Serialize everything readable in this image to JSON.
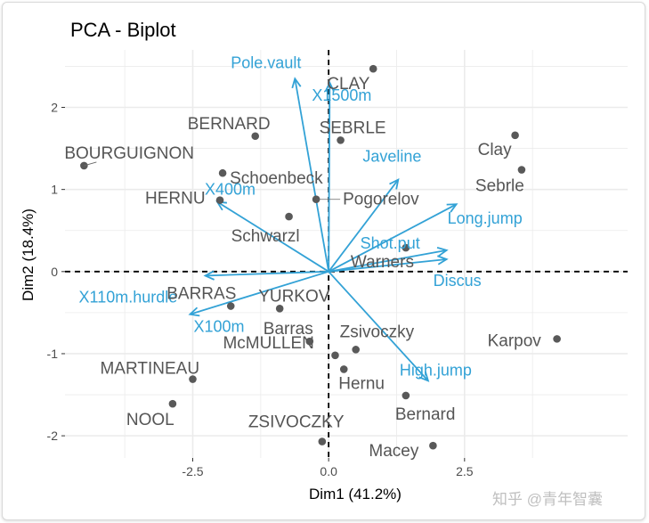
{
  "chart_data": {
    "type": "scatter",
    "title": "PCA - Biplot",
    "xlabel": "Dim1 (41.2%)",
    "ylabel": "Dim2 (18.4%)",
    "xlim": [
      -4.85,
      5.5
    ],
    "ylim": [
      -2.27,
      2.7
    ],
    "xticks": [
      -2.5,
      0,
      2.5
    ],
    "xtick_labels": [
      "-2.5",
      "0.0",
      "2.5"
    ],
    "yticks": [
      -2,
      -1,
      0,
      1,
      2
    ],
    "ytick_labels": [
      "-2",
      "-1",
      "0",
      "1",
      "2"
    ],
    "grid": true,
    "individuals": [
      {
        "name": "BOURGUIGNON",
        "x": -4.5,
        "y": 1.29
      },
      {
        "name": "BERNARD",
        "x": -1.35,
        "y": 1.65
      },
      {
        "name": "Schoenbeck",
        "x": -1.95,
        "y": 1.2
      },
      {
        "name": "HERNU",
        "x": -2.0,
        "y": 0.87
      },
      {
        "name": "CLAY",
        "x": 0.82,
        "y": 2.47
      },
      {
        "name": "SEBRLE",
        "x": 0.22,
        "y": 1.6
      },
      {
        "name": "Pogorelov",
        "x": -0.23,
        "y": 0.88
      },
      {
        "name": "Schwarzl",
        "x": -0.73,
        "y": 0.67
      },
      {
        "name": "Clay",
        "x": 3.43,
        "y": 1.66
      },
      {
        "name": "Sebrle",
        "x": 3.55,
        "y": 1.24
      },
      {
        "name": "Warners",
        "x": 1.42,
        "y": 0.29
      },
      {
        "name": "BARRAS",
        "x": -1.8,
        "y": -0.42
      },
      {
        "name": "YURKOV",
        "x": -0.9,
        "y": -0.45
      },
      {
        "name": "Barras",
        "x": -0.35,
        "y": -0.85
      },
      {
        "name": "Zsivoczky",
        "x": 0.5,
        "y": -0.95
      },
      {
        "name": "McMULLEN",
        "x": 0.12,
        "y": -1.02
      },
      {
        "name": "Hernu",
        "x": 0.28,
        "y": -1.19
      },
      {
        "name": "Karpov",
        "x": 4.2,
        "y": -0.82
      },
      {
        "name": "Bernard",
        "x": 1.42,
        "y": -1.51
      },
      {
        "name": "MARTINEAU",
        "x": -2.5,
        "y": -1.31
      },
      {
        "name": "NOOL",
        "x": -2.87,
        "y": -1.61
      },
      {
        "name": "ZSIVOCZKY",
        "x": -0.12,
        "y": -2.07
      },
      {
        "name": "Macey",
        "x": 1.92,
        "y": -2.12
      }
    ],
    "variables": [
      {
        "name": "Pole.vault",
        "x": -0.62,
        "y": 2.35
      },
      {
        "name": "X1500m",
        "x": 0.02,
        "y": 2.3
      },
      {
        "name": "X400m",
        "x": -2.05,
        "y": 0.85
      },
      {
        "name": "Javeline",
        "x": 1.28,
        "y": 1.12
      },
      {
        "name": "Long.jump",
        "x": 2.35,
        "y": 0.82
      },
      {
        "name": "Shot.put",
        "x": 2.17,
        "y": 0.26
      },
      {
        "name": "Discus",
        "x": 2.17,
        "y": 0.15
      },
      {
        "name": "X110m.hurdle",
        "x": -2.27,
        "y": -0.05
      },
      {
        "name": "X100m",
        "x": -2.55,
        "y": -0.52
      },
      {
        "name": "High.jump",
        "x": 1.83,
        "y": -1.33
      }
    ]
  },
  "watermark": "知乎 @青年智囊",
  "colors": {
    "points": "#595959",
    "arrows": "#33a2d6",
    "grid": "#ebebeb"
  }
}
